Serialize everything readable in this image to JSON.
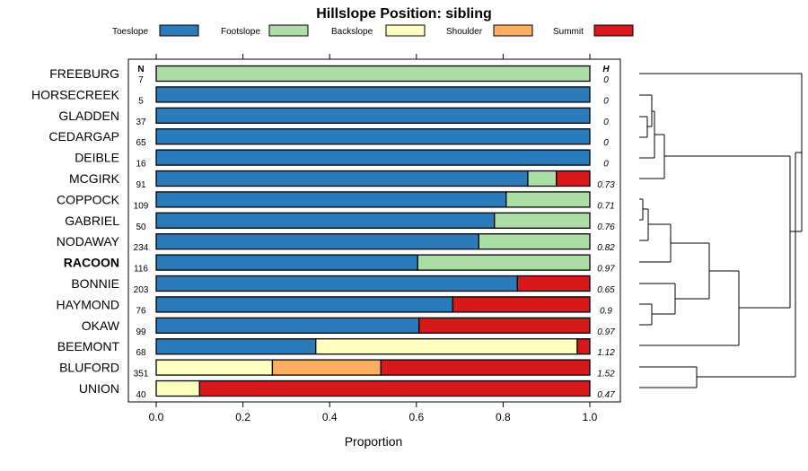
{
  "chart_data": {
    "type": "bar",
    "stacked": true,
    "orientation": "horizontal",
    "title": "Hillslope Position: sibling",
    "xlabel": "Proportion",
    "xlim": [
      0,
      1
    ],
    "xticks": [
      "0.0",
      "0.2",
      "0.4",
      "0.6",
      "0.8",
      "1.0"
    ],
    "legend_position": "top",
    "n_header": "N",
    "h_header": "H",
    "highlight": "RACOON",
    "series": [
      {
        "name": "Toeslope",
        "color": "#2b7bba"
      },
      {
        "name": "Footslope",
        "color": "#abdda4"
      },
      {
        "name": "Backslope",
        "color": "#ffffbf"
      },
      {
        "name": "Shoulder",
        "color": "#fdae61"
      },
      {
        "name": "Summit",
        "color": "#d7191c"
      }
    ],
    "categories": [
      {
        "label": "FREEBURG",
        "n": "7",
        "h": "0",
        "values": [
          0,
          1,
          0,
          0,
          0
        ]
      },
      {
        "label": "HORSECREEK",
        "n": "5",
        "h": "0",
        "values": [
          1,
          0,
          0,
          0,
          0
        ]
      },
      {
        "label": "GLADDEN",
        "n": "37",
        "h": "0",
        "values": [
          1,
          0,
          0,
          0,
          0
        ]
      },
      {
        "label": "CEDARGAP",
        "n": "65",
        "h": "0",
        "values": [
          1,
          0,
          0,
          0,
          0
        ]
      },
      {
        "label": "DEIBLE",
        "n": "16",
        "h": "0",
        "values": [
          1,
          0,
          0,
          0,
          0
        ]
      },
      {
        "label": "MCGIRK",
        "n": "91",
        "h": "0.73",
        "values": [
          0.857,
          0.066,
          0,
          0,
          0.077
        ]
      },
      {
        "label": "COPPOCK",
        "n": "109",
        "h": "0.71",
        "values": [
          0.807,
          0.193,
          0,
          0,
          0
        ]
      },
      {
        "label": "GABRIEL",
        "n": "50",
        "h": "0.76",
        "values": [
          0.78,
          0.22,
          0,
          0,
          0
        ]
      },
      {
        "label": "NODAWAY",
        "n": "234",
        "h": "0.82",
        "values": [
          0.744,
          0.256,
          0,
          0,
          0
        ]
      },
      {
        "label": "RACOON",
        "n": "116",
        "h": "0.97",
        "values": [
          0.603,
          0.397,
          0,
          0,
          0
        ]
      },
      {
        "label": "BONNIE",
        "n": "203",
        "h": "0.65",
        "values": [
          0.833,
          0,
          0,
          0,
          0.167
        ]
      },
      {
        "label": "HAYMOND",
        "n": "76",
        "h": "0.9",
        "values": [
          0.684,
          0,
          0,
          0,
          0.316
        ]
      },
      {
        "label": "OKAW",
        "n": "99",
        "h": "0.97",
        "values": [
          0.606,
          0,
          0,
          0,
          0.394
        ]
      },
      {
        "label": "BEEMONT",
        "n": "68",
        "h": "1.12",
        "values": [
          0.368,
          0,
          0.603,
          0,
          0.029
        ]
      },
      {
        "label": "BLUFORD",
        "n": "351",
        "h": "1.52",
        "values": [
          0,
          0,
          0.268,
          0.25,
          0.482
        ]
      },
      {
        "label": "UNION",
        "n": "40",
        "h": "0.47",
        "values": [
          0,
          0,
          0.1,
          0,
          0.9
        ]
      }
    ]
  }
}
